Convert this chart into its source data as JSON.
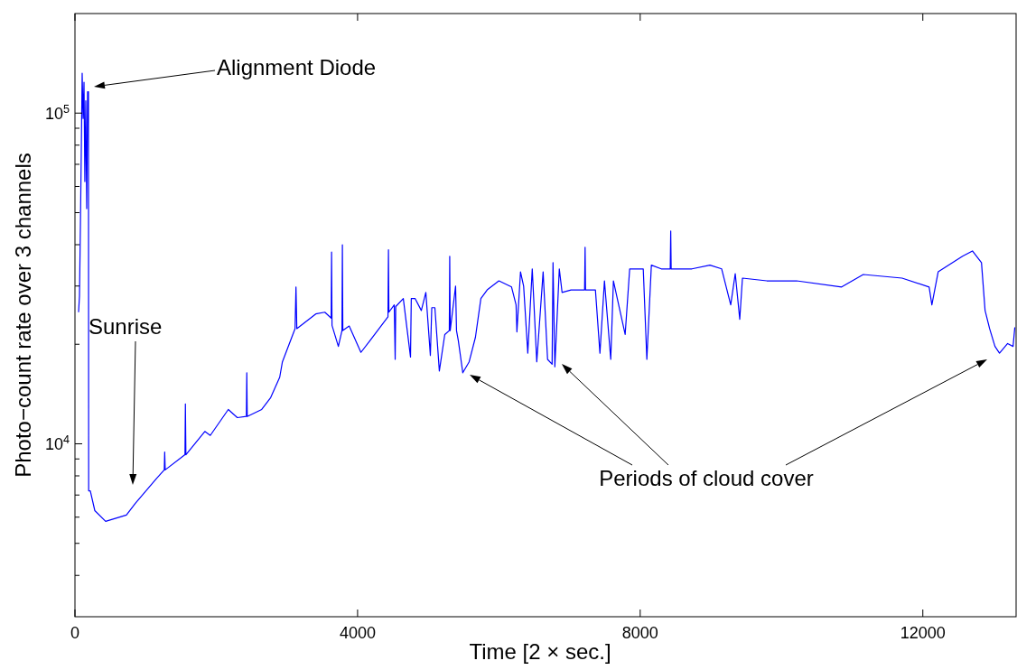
{
  "chart_data": {
    "type": "line",
    "xlabel": "Time [2 × sec.]",
    "ylabel": "Photo−count rate over 3 channels",
    "log": "y",
    "grid": false,
    "marker": "none",
    "line_style": "solid",
    "xlim": [
      0,
      13320
    ],
    "xticks": [
      0,
      4000,
      8000,
      12000
    ],
    "ylim": [
      3000,
      200000
    ],
    "yticks": [
      {
        "value": 4000,
        "label": null
      },
      {
        "value": 5000,
        "label": null
      },
      {
        "value": 6000,
        "label": null
      },
      {
        "value": 7000,
        "label": null
      },
      {
        "value": 8000,
        "label": null
      },
      {
        "value": 9000,
        "label": null
      },
      {
        "value": 10000,
        "label": "10$^{4}$"
      },
      {
        "value": 20000,
        "label": null
      },
      {
        "value": 30000,
        "label": null
      },
      {
        "value": 40000,
        "label": null
      },
      {
        "value": 50000,
        "label": null
      },
      {
        "value": 60000,
        "label": null
      },
      {
        "value": 70000,
        "label": null
      },
      {
        "value": 80000,
        "label": null
      },
      {
        "value": 90000,
        "label": null
      },
      {
        "value": 100000,
        "label": "10$^{5}$"
      }
    ],
    "annotations": [
      "Alignment Diode",
      "Sunrise",
      "Periods of cloud cover"
    ],
    "series": [
      {
        "color": "#0000ff",
        "x": [
          51,
          64,
          77,
          89,
          102,
          115,
          128,
          140,
          153,
          166,
          179,
          191,
          194,
          217,
          281,
          434,
          728,
          855,
          1149,
          1264,
          1270,
          1277,
          1557,
          1563,
          1570,
          1838,
          1915,
          2170,
          2298,
          2426,
          2432,
          2438,
          2643,
          2770,
          2898,
          2936,
          3115,
          3128,
          3140,
          3408,
          3536,
          3626,
          3632,
          3638,
          3728,
          3779,
          3785,
          3791,
          3881,
          4047,
          4174,
          4430,
          4437,
          4443,
          4519,
          4532,
          4540,
          4647,
          4749,
          4760,
          4813,
          4902,
          4966,
          5030,
          5050,
          5094,
          5157,
          5234,
          5298,
          5304,
          5311,
          5387,
          5400,
          5426,
          5489,
          5579,
          5668,
          5745,
          5834,
          6000,
          6179,
          6243,
          6255,
          6306,
          6350,
          6409,
          6472,
          6536,
          6626,
          6689,
          6753,
          6766,
          6792,
          6855,
          6894,
          7021,
          7213,
          7220,
          7226,
          7366,
          7430,
          7494,
          7583,
          7621,
          7787,
          7851,
          8043,
          8094,
          8158,
          8298,
          8425,
          8432,
          8438,
          8489,
          8732,
          8987,
          9153,
          9281,
          9345,
          9409,
          9447,
          9792,
          10213,
          10851,
          11157,
          11706,
          12089,
          12128,
          12217,
          12562,
          12702,
          12830,
          12881,
          12945,
          13021,
          13085,
          13200,
          13277,
          13302
        ],
        "values": [
          25000,
          28000,
          45400,
          75000,
          132000,
          96300,
          124000,
          62100,
          109000,
          51400,
          116000,
          116000,
          7210,
          7210,
          6280,
          5830,
          6090,
          6610,
          7830,
          8340,
          9450,
          8340,
          9270,
          13200,
          9270,
          10900,
          10600,
          12700,
          12000,
          12100,
          16400,
          12100,
          12700,
          13800,
          15900,
          17700,
          22300,
          29800,
          22300,
          24700,
          25000,
          24000,
          38000,
          22800,
          19700,
          22000,
          40000,
          22000,
          22700,
          18900,
          20500,
          24200,
          38600,
          25000,
          26300,
          18000,
          26000,
          27500,
          18300,
          27500,
          27500,
          25300,
          28700,
          18500,
          25800,
          25800,
          16600,
          21400,
          22000,
          36900,
          22000,
          30000,
          22000,
          20500,
          16400,
          17700,
          21000,
          27500,
          29200,
          31100,
          29800,
          26300,
          21800,
          33100,
          30000,
          18800,
          33800,
          17700,
          33100,
          18000,
          17400,
          35300,
          17100,
          33800,
          28700,
          29200,
          29200,
          39300,
          29200,
          29200,
          18800,
          31100,
          18000,
          31100,
          21400,
          33800,
          33800,
          18000,
          34700,
          33800,
          33800,
          44000,
          33800,
          33800,
          33800,
          34700,
          33800,
          26300,
          32700,
          23800,
          31700,
          31100,
          31100,
          29800,
          32500,
          31700,
          29800,
          26300,
          33100,
          36900,
          38300,
          35300,
          25300,
          22300,
          19700,
          18800,
          20100,
          19700,
          22500
        ]
      }
    ]
  }
}
